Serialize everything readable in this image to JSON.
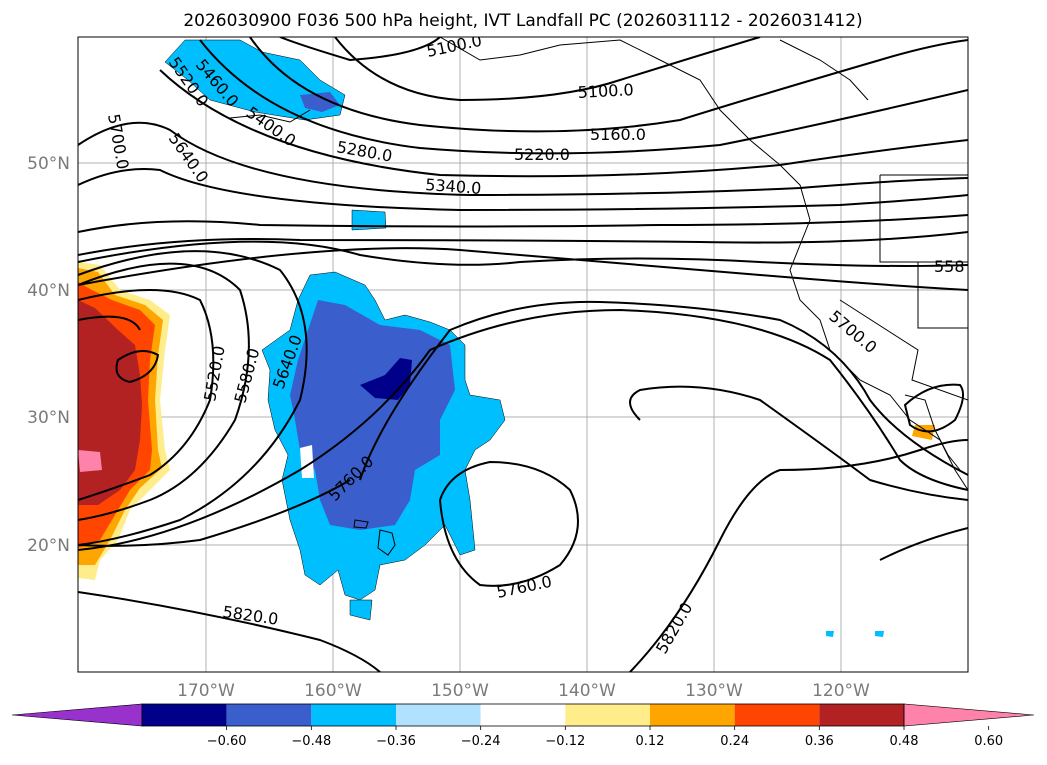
{
  "title": "2026030900 F036 500 hPa height, IVT Landfall PC (2026031112 - 2026031412)",
  "map": {
    "lat_labels": [
      "50°N",
      "40°N",
      "30°N",
      "20°N"
    ],
    "lon_labels": [
      "170°W",
      "160°W",
      "150°W",
      "140°W",
      "130°W",
      "120°W"
    ],
    "extent": {
      "lon_min": -180,
      "lon_max": -110,
      "lat_min": 10,
      "lat_max": 60
    },
    "grid": true
  },
  "contour_labels": [
    {
      "text": "5100.0"
    },
    {
      "text": "5100.0"
    },
    {
      "text": "5160.0"
    },
    {
      "text": "5220.0"
    },
    {
      "text": "5280.0"
    },
    {
      "text": "5340.0"
    },
    {
      "text": "5400.0"
    },
    {
      "text": "5460.0"
    },
    {
      "text": "5520.0"
    },
    {
      "text": "5640.0"
    },
    {
      "text": "5700.0"
    },
    {
      "text": "5520.0"
    },
    {
      "text": "5580.0"
    },
    {
      "text": "5640.0"
    },
    {
      "text": "5760.0"
    },
    {
      "text": "5760.0"
    },
    {
      "text": "5820.0"
    },
    {
      "text": "5820.0"
    },
    {
      "text": "5700.0"
    },
    {
      "text": "558"
    }
  ],
  "colorbar": {
    "ticks": [
      "−0.60",
      "−0.48",
      "−0.36",
      "−0.24",
      "−0.12",
      "0.12",
      "0.24",
      "0.36",
      "0.48",
      "0.60"
    ],
    "colors": [
      "#9932cc",
      "#00008b",
      "#3a5fcd",
      "#00bfff",
      "#b0e2ff",
      "#ffffff",
      "#ffec8b",
      "#ffa500",
      "#ff4500",
      "#b22222",
      "#ff82ab"
    ]
  }
}
